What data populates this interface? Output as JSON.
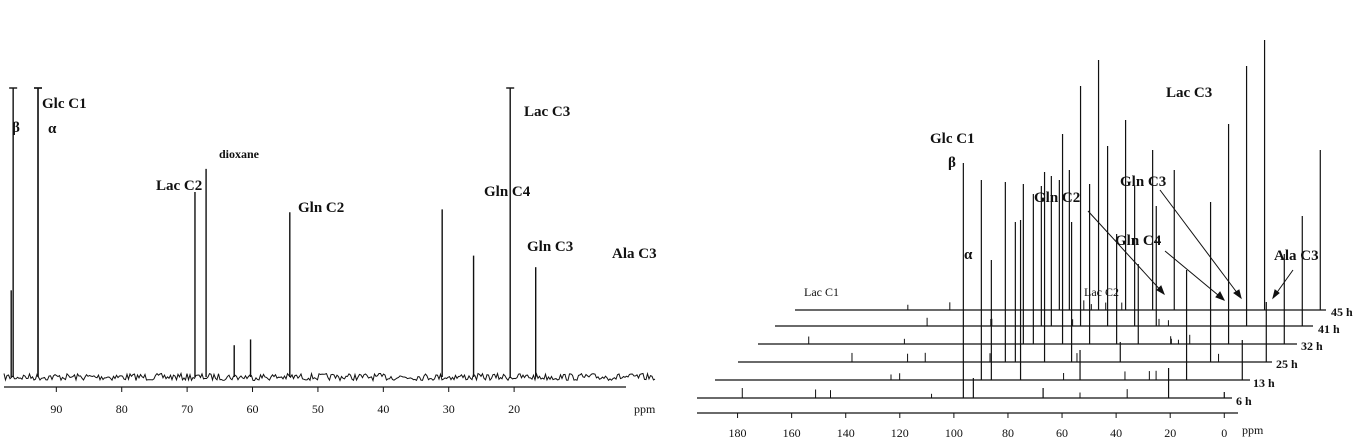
{
  "chart_data": [
    {
      "type": "line",
      "title": "",
      "xlabel": "ppm",
      "ylabel": "",
      "xlim": [
        98,
        0
      ],
      "ylim": [
        0,
        1
      ],
      "xaxis_reversed": true,
      "x_ticks": [
        90,
        80,
        70,
        60,
        50,
        40,
        30,
        20
      ],
      "grid": false,
      "legend": "none",
      "peaks": [
        {
          "ppm": 96.6,
          "height": 1.0,
          "label": "β"
        },
        {
          "ppm": 92.8,
          "height": 1.0,
          "label": "Glc C1"
        },
        {
          "ppm": 92.8,
          "height": 1.0,
          "label": "α"
        },
        {
          "ppm": 68.8,
          "height": 0.64,
          "label": "Lac C2"
        },
        {
          "ppm": 67.1,
          "height": 0.72,
          "label": "dioxane"
        },
        {
          "ppm": 54.3,
          "height": 0.57,
          "label": "Gln C2"
        },
        {
          "ppm": 31.0,
          "height": 0.58,
          "label": "Gln C4"
        },
        {
          "ppm": 26.2,
          "height": 0.42,
          "label": "Gln C3"
        },
        {
          "ppm": 20.6,
          "height": 1.0,
          "label": "Lac C3"
        },
        {
          "ppm": 16.7,
          "height": 0.38,
          "label": "Ala C3"
        },
        {
          "ppm": 62.8,
          "height": 0.11,
          "label": ""
        },
        {
          "ppm": 60.3,
          "height": 0.13,
          "label": ""
        },
        {
          "ppm": 96.9,
          "height": 0.3,
          "label": ""
        }
      ]
    },
    {
      "type": "line",
      "title": "",
      "xlabel": "ppm",
      "ylabel": "",
      "xlim": [
        195,
        -5
      ],
      "xaxis_reversed": true,
      "x_ticks": [
        180,
        160,
        140,
        120,
        100,
        80,
        60,
        40,
        20,
        0
      ],
      "grid": false,
      "legend": "none",
      "series": [
        {
          "name": "6 h"
        },
        {
          "name": "13 h"
        },
        {
          "name": "25 h"
        },
        {
          "name": "32 h"
        },
        {
          "name": "41 h"
        },
        {
          "name": "45 h"
        }
      ],
      "annotations": [
        "Lac C1",
        "Glc C1",
        "β",
        "α",
        "Lac C2",
        "Gln C2",
        "Gln C4",
        "Gln C3",
        "Lac C3",
        "Ala C3"
      ]
    }
  ],
  "left": {
    "unit_label": "ppm",
    "labels": {
      "beta": "β",
      "glc_c1": "Glc C1",
      "alpha": "α",
      "lac_c2": "Lac C2",
      "dioxane": "dioxane",
      "gln_c2": "Gln C2",
      "gln_c4": "Gln C4",
      "gln_c3": "Gln C3",
      "lac_c3": "Lac C3",
      "ala_c3": "Ala C3"
    }
  },
  "right": {
    "unit_label": "ppm",
    "labels": {
      "lac_c1": "Lac C1",
      "glc_c1": "Glc C1",
      "beta": "β",
      "alpha": "α",
      "lac_c2": "Lac C2",
      "gln_c2": "Gln C2",
      "gln_c4": "Gln C4",
      "gln_c3": "Gln C3",
      "lac_c3": "Lac C3",
      "ala_c3": "Ala C3"
    },
    "time_labels": [
      "6 h",
      "13 h",
      "25 h",
      "32 h",
      "41 h",
      "45 h"
    ]
  }
}
